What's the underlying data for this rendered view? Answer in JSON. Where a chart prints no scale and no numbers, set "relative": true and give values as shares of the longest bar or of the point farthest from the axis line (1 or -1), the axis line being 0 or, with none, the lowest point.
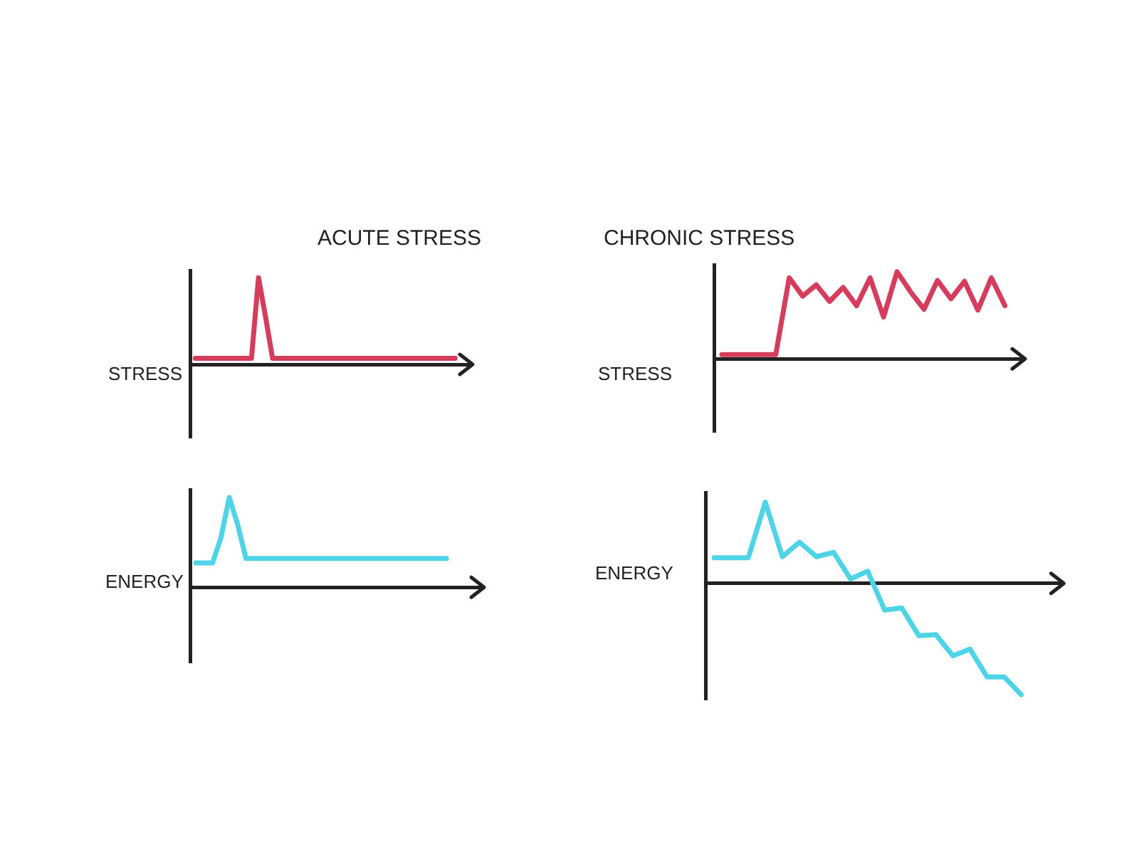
{
  "chart_data": [
    {
      "type": "line",
      "relative": true,
      "title": "ACUTE STRESS",
      "ylabel": "STRESS",
      "categories": [
        null,
        null,
        null,
        null,
        null,
        null,
        null,
        null,
        null,
        null,
        null,
        null,
        null,
        null,
        null,
        null,
        null,
        null,
        null,
        null,
        null,
        null,
        null,
        null,
        null,
        null,
        null,
        null,
        null,
        null,
        null,
        null,
        null,
        null,
        null,
        null,
        null,
        null,
        null,
        null
      ],
      "series": [
        {
          "color": "#d63c5c",
          "values": [
            0.07,
            0.07,
            0.07,
            0.07,
            0.07,
            0.07,
            0.07,
            0.07,
            0.07,
            1.0,
            0.55,
            0.07,
            0.07,
            0.07,
            0.07,
            0.07,
            0.07,
            0.07,
            0.07,
            0.07,
            0.07,
            0.07,
            0.07,
            0.07,
            0.07,
            0.07,
            0.07,
            0.07,
            0.07,
            0.07,
            0.07,
            0.07,
            0.07,
            0.07,
            0.07,
            0.07,
            0.07,
            0.07,
            null,
            null
          ]
        }
      ]
    },
    {
      "type": "line",
      "relative": true,
      "title": "CHRONIC STRESS",
      "ylabel": "STRESS",
      "categories": [
        null,
        null,
        null,
        null,
        null,
        null,
        null,
        null,
        null,
        null,
        null,
        null,
        null,
        null,
        null,
        null,
        null,
        null,
        null,
        null,
        null,
        null,
        null
      ],
      "series": [
        {
          "color": "#d63c5c",
          "values": [
            0.05,
            0.05,
            0.05,
            0.05,
            0.05,
            0.93,
            0.72,
            0.85,
            0.66,
            0.82,
            0.61,
            0.93,
            0.48,
            1.0,
            0.77,
            0.57,
            0.9,
            0.69,
            0.89,
            0.56,
            0.93,
            0.61,
            null
          ]
        }
      ]
    },
    {
      "type": "line",
      "relative": true,
      "ylabel": "ENERGY",
      "categories": [
        null,
        null,
        null,
        null,
        null,
        null,
        null,
        null,
        null,
        null,
        null,
        null,
        null,
        null,
        null,
        null,
        null,
        null,
        null,
        null,
        null,
        null,
        null,
        null,
        null,
        null,
        null,
        null,
        null,
        null,
        null,
        null,
        null,
        null,
        null
      ],
      "series": [
        {
          "color": "#4fd3e6",
          "values": [
            0.27,
            0.27,
            0.27,
            0.55,
            1.0,
            0.7,
            0.32,
            0.32,
            0.32,
            0.32,
            0.32,
            0.32,
            0.32,
            0.32,
            0.32,
            0.32,
            0.32,
            0.32,
            0.32,
            0.32,
            0.32,
            0.32,
            0.32,
            0.32,
            0.32,
            0.32,
            0.32,
            0.32,
            0.32,
            0.32,
            0.32,
            null,
            null,
            null,
            null
          ]
        }
      ]
    },
    {
      "type": "line",
      "relative": true,
      "ylabel": "ENERGY",
      "categories": [
        null,
        null,
        null,
        null,
        null,
        null,
        null,
        null,
        null,
        null,
        null,
        null,
        null,
        null,
        null,
        null,
        null,
        null,
        null,
        null,
        null
      ],
      "series": [
        {
          "color": "#4fd3e6",
          "values": [
            0.23,
            0.23,
            0.23,
            0.73,
            0.24,
            0.37,
            0.24,
            0.28,
            0.04,
            0.11,
            -0.24,
            -0.22,
            -0.47,
            -0.46,
            -0.65,
            -0.59,
            -0.84,
            -0.84,
            -1.0,
            null,
            null
          ]
        }
      ]
    }
  ]
}
